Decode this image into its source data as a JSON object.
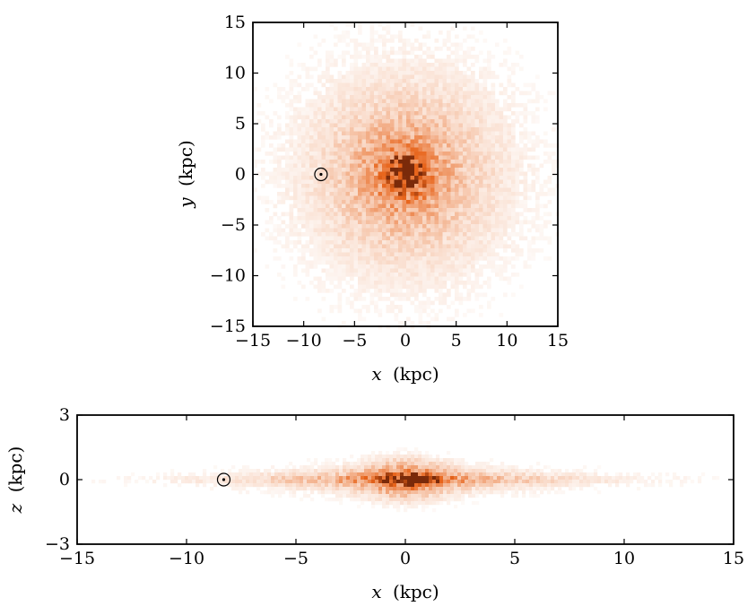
{
  "chart_data": [
    {
      "type": "heatmap",
      "panel": "face-on",
      "title": "",
      "xlabel": "x (kpc)",
      "xlabel_var": "x",
      "xlabel_unit": "(kpc)",
      "ylabel": "y (kpc)",
      "ylabel_var": "y",
      "ylabel_unit": "(kpc)",
      "xlim": [
        -15,
        15
      ],
      "ylim": [
        -15,
        15
      ],
      "xticks": [
        -15,
        -10,
        -5,
        0,
        5,
        10,
        15
      ],
      "yticks": [
        -15,
        -10,
        -5,
        0,
        5,
        10,
        15
      ],
      "xtick_labels": [
        "−15",
        "−10",
        "−5",
        "0",
        "5",
        "10",
        "15"
      ],
      "ytick_labels": [
        "−15",
        "−10",
        "−5",
        "0",
        "5",
        "10",
        "15"
      ],
      "colormap": "white-to-orange",
      "color_high": "#e8641a",
      "color_peak": "#7a2a0a",
      "distribution": {
        "center": [
          0,
          0
        ],
        "radial_scale_kpc": 4.5
      },
      "sun_marker": {
        "x": -8.3,
        "y": 0.0,
        "symbol": "sun"
      },
      "grid": false,
      "legend": "none"
    },
    {
      "type": "heatmap",
      "panel": "edge-on",
      "title": "",
      "xlabel": "x (kpc)",
      "xlabel_var": "x",
      "xlabel_unit": "(kpc)",
      "ylabel": "z (kpc)",
      "ylabel_var": "z",
      "ylabel_unit": "(kpc)",
      "xlim": [
        -15,
        15
      ],
      "ylim": [
        -3,
        3
      ],
      "xticks": [
        -15,
        -10,
        -5,
        0,
        5,
        10,
        15
      ],
      "yticks": [
        -3,
        0,
        3
      ],
      "xtick_labels": [
        "−15",
        "−10",
        "−5",
        "0",
        "5",
        "10",
        "15"
      ],
      "ytick_labels": [
        "−3",
        "0",
        "3"
      ],
      "colormap": "white-to-orange",
      "color_high": "#e8641a",
      "color_peak": "#7a2a0a",
      "distribution": {
        "center": [
          0,
          0
        ],
        "radial_scale_kpc": 4.5,
        "vertical_scale_kpc": 0.35
      },
      "sun_marker": {
        "x": -8.3,
        "z": 0.0,
        "symbol": "sun"
      },
      "grid": false,
      "legend": "none"
    }
  ]
}
